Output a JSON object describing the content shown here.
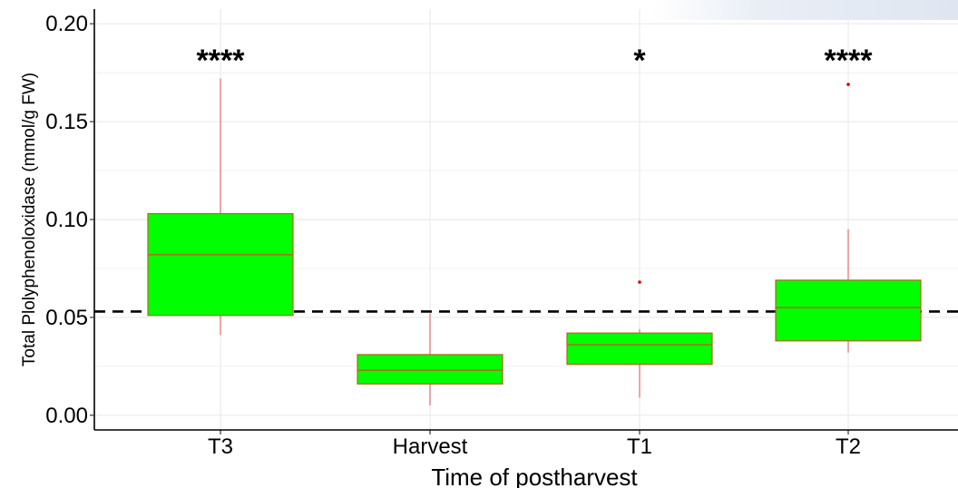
{
  "chart_data": {
    "type": "box",
    "xlabel": "Time of postharvest",
    "ylabel": "Total Plolyphenoloxidase (mmol/g FW)",
    "ylim": [
      -0.0075,
      0.2075
    ],
    "yticks": [
      0.0,
      0.05,
      0.1,
      0.15,
      0.2
    ],
    "ytick_labels": [
      "0.00",
      "0.05",
      "0.10",
      "0.15",
      "0.20"
    ],
    "categories": [
      "T3",
      "Harvest",
      "T1",
      "T2"
    ],
    "boxes": [
      {
        "category": "T3",
        "whisker_low": 0.041,
        "q1": 0.051,
        "median": 0.082,
        "q3": 0.103,
        "whisker_high": 0.172,
        "outliers": [],
        "significance": "****"
      },
      {
        "category": "Harvest",
        "whisker_low": 0.005,
        "q1": 0.016,
        "median": 0.023,
        "q3": 0.031,
        "whisker_high": 0.052,
        "outliers": [],
        "significance": ""
      },
      {
        "category": "T1",
        "whisker_low": 0.009,
        "q1": 0.026,
        "median": 0.036,
        "q3": 0.042,
        "whisker_high": 0.044,
        "outliers": [
          0.068
        ],
        "significance": "*"
      },
      {
        "category": "T2",
        "whisker_low": 0.032,
        "q1": 0.038,
        "median": 0.055,
        "q3": 0.069,
        "whisker_high": 0.095,
        "outliers": [
          0.169
        ],
        "significance": "****"
      }
    ],
    "reference_line": {
      "value": 0.053,
      "style": "dashed"
    },
    "colors": {
      "box_fill": "#00ff00",
      "box_border": "#b5651d",
      "median": "#b5651d",
      "whisker": "#e05050",
      "outlier": "#dd0000",
      "reference_line": "#000000",
      "grid": "#ebebeb"
    },
    "grid": true,
    "legend": "none"
  }
}
